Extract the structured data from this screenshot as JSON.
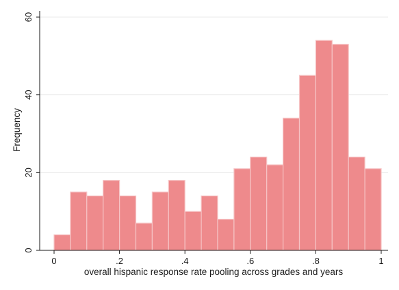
{
  "chart_data": {
    "type": "bar",
    "subtype": "histogram",
    "title": "",
    "xlabel": "overall hispanic response rate pooling across grades and years",
    "ylabel": "Frequency",
    "xlim": [
      0,
      1
    ],
    "ylim": [
      0,
      60
    ],
    "x_ticks": [
      {
        "value": 0,
        "label": "0"
      },
      {
        "value": 0.2,
        "label": ".2"
      },
      {
        "value": 0.4,
        "label": ".4"
      },
      {
        "value": 0.6,
        "label": ".6"
      },
      {
        "value": 0.8,
        "label": ".8"
      },
      {
        "value": 1,
        "label": "1"
      }
    ],
    "y_ticks": [
      {
        "value": 0,
        "label": "0"
      },
      {
        "value": 20,
        "label": "20"
      },
      {
        "value": 40,
        "label": "40"
      },
      {
        "value": 60,
        "label": "60"
      }
    ],
    "bin_width": 0.05,
    "bins": [
      {
        "start": 0.0,
        "end": 0.05,
        "value": 4
      },
      {
        "start": 0.05,
        "end": 0.1,
        "value": 15
      },
      {
        "start": 0.1,
        "end": 0.15,
        "value": 14
      },
      {
        "start": 0.15,
        "end": 0.2,
        "value": 18
      },
      {
        "start": 0.2,
        "end": 0.25,
        "value": 14
      },
      {
        "start": 0.25,
        "end": 0.3,
        "value": 7
      },
      {
        "start": 0.3,
        "end": 0.35,
        "value": 15
      },
      {
        "start": 0.35,
        "end": 0.4,
        "value": 18
      },
      {
        "start": 0.4,
        "end": 0.45,
        "value": 10
      },
      {
        "start": 0.45,
        "end": 0.5,
        "value": 14
      },
      {
        "start": 0.5,
        "end": 0.55,
        "value": 8
      },
      {
        "start": 0.55,
        "end": 0.6,
        "value": 21
      },
      {
        "start": 0.6,
        "end": 0.65,
        "value": 24
      },
      {
        "start": 0.65,
        "end": 0.7,
        "value": 22
      },
      {
        "start": 0.7,
        "end": 0.75,
        "value": 34
      },
      {
        "start": 0.75,
        "end": 0.8,
        "value": 45
      },
      {
        "start": 0.8,
        "end": 0.85,
        "value": 54
      },
      {
        "start": 0.85,
        "end": 0.9,
        "value": 53
      },
      {
        "start": 0.9,
        "end": 0.95,
        "value": 24
      },
      {
        "start": 0.95,
        "end": 1.0,
        "value": 21
      }
    ],
    "grid": "horizontal",
    "colors": {
      "bar_fill": "#ee8a8c",
      "bar_stroke": "#f6c4c5",
      "grid": "#e9e9e9",
      "axis": "#1a1a1a",
      "background": "#ffffff"
    }
  }
}
